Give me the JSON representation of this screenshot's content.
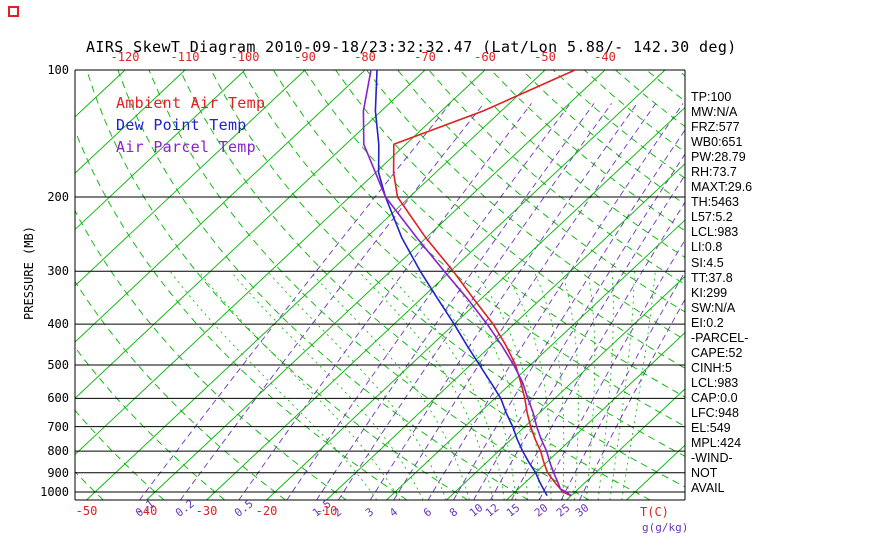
{
  "title": "AIRS SkewT Diagram 2010-09-18/23:32:32.47 (Lat/Lon 5.88/- 142.30 deg)",
  "colors": {
    "isotherm_green": "#00b400",
    "temp_red": "#dd2222",
    "dew_blue": "#2222cc",
    "parcel_purple": "#8822cc",
    "mixing_violet": "#6a35b8",
    "axis_black": "#000000"
  },
  "y_axis": {
    "label": "PRESSURE (MB)",
    "ticks": [
      100,
      200,
      300,
      400,
      500,
      600,
      700,
      800,
      900,
      1000
    ]
  },
  "top_axis": {
    "ticks": [
      -120,
      -110,
      -100,
      -90,
      -80,
      -70,
      -60,
      -50,
      -40
    ]
  },
  "bottom_axis": {
    "temp_ticks": [
      -50,
      -40,
      -30,
      -20,
      -10
    ],
    "temp_label": "T(C)",
    "mix_ticks": [
      0.1,
      0.2,
      0.5,
      1.5,
      2,
      3,
      4,
      6,
      8,
      10,
      12,
      15,
      20,
      25,
      30
    ],
    "mix_label": "g(g/kg)"
  },
  "legend": {
    "items": [
      {
        "label": "Ambient Air Temp",
        "color": "#dd2222"
      },
      {
        "label": "Dew Point Temp",
        "color": "#2222cc"
      },
      {
        "label": "Air Parcel Temp",
        "color": "#8822cc"
      }
    ]
  },
  "stats": {
    "lines": [
      "TP:100",
      "MW:N/A",
      "FRZ:577",
      "WB0:651",
      "PW:28.79",
      "RH:73.7",
      "MAXT:29.6",
      "TH:5463",
      "L57:5.2",
      "LCL:983",
      "LI:0.8",
      "SI:4.5",
      "TT:37.8",
      "KI:299",
      "SW:N/A",
      "EI:0.2",
      "-PARCEL-",
      "CAPE:52",
      "CINH:5",
      "LCL:983",
      "CAP:0.0",
      "LFC:948",
      "EL:549",
      "MPL:424",
      "-WIND-",
      "NOT",
      "AVAIL"
    ]
  },
  "chart_data": {
    "type": "line",
    "title": "AIRS SkewT Diagram 2010-09-18/23:32:32.47 (Lat/Lon 5.88/- 142.30 deg)",
    "x_axis": {
      "label": "T(C)",
      "unit": "degC",
      "top_ticks": [
        -120,
        -110,
        -100,
        -90,
        -80,
        -70,
        -60,
        -50,
        -40
      ],
      "bottom_ticks": [
        -50,
        -40,
        -30,
        -20,
        -10
      ]
    },
    "y_axis": {
      "label": "PRESSURE (MB)",
      "unit": "hPa",
      "scale": "log",
      "range": [
        100,
        1045
      ],
      "ticks": [
        100,
        200,
        300,
        400,
        500,
        600,
        700,
        800,
        900,
        1000
      ]
    },
    "projection": "skew-t log-p, isotherms skewed ~45deg",
    "series": [
      {
        "name": "Ambient Air Temp",
        "color": "#dd2222",
        "points_p_t": [
          [
            1020,
            30
          ],
          [
            1000,
            28
          ],
          [
            950,
            25
          ],
          [
            900,
            22
          ],
          [
            850,
            19.5
          ],
          [
            800,
            17
          ],
          [
            750,
            14
          ],
          [
            700,
            11
          ],
          [
            650,
            8
          ],
          [
            600,
            5
          ],
          [
            550,
            1.5
          ],
          [
            500,
            -2.5
          ],
          [
            450,
            -7.5
          ],
          [
            400,
            -13.5
          ],
          [
            350,
            -21
          ],
          [
            300,
            -29.5
          ],
          [
            250,
            -40
          ],
          [
            200,
            -52
          ],
          [
            175,
            -57
          ],
          [
            150,
            -62
          ],
          [
            125,
            -53
          ],
          [
            100,
            -45
          ]
        ]
      },
      {
        "name": "Dew Point Temp",
        "color": "#2222cc",
        "points_p_t": [
          [
            1020,
            26
          ],
          [
            1000,
            25
          ],
          [
            950,
            22.5
          ],
          [
            900,
            20
          ],
          [
            850,
            17
          ],
          [
            800,
            14
          ],
          [
            750,
            11
          ],
          [
            700,
            8
          ],
          [
            650,
            4.5
          ],
          [
            600,
            1
          ],
          [
            550,
            -3.5
          ],
          [
            500,
            -8.5
          ],
          [
            450,
            -14
          ],
          [
            400,
            -20
          ],
          [
            350,
            -27
          ],
          [
            300,
            -35
          ],
          [
            250,
            -44
          ],
          [
            200,
            -54
          ],
          [
            175,
            -59.5
          ],
          [
            150,
            -64.5
          ],
          [
            125,
            -71
          ],
          [
            100,
            -78
          ]
        ]
      },
      {
        "name": "Air Parcel Temp",
        "color": "#8822cc",
        "points_p_t": [
          [
            1020,
            30
          ],
          [
            1000,
            28.5
          ],
          [
            983,
            27
          ],
          [
            950,
            25.5
          ],
          [
            900,
            23
          ],
          [
            850,
            20.5
          ],
          [
            800,
            18
          ],
          [
            750,
            15
          ],
          [
            700,
            12
          ],
          [
            650,
            9
          ],
          [
            600,
            5.5
          ],
          [
            550,
            1.8
          ],
          [
            500,
            -2.8
          ],
          [
            450,
            -8.2
          ],
          [
            400,
            -14.5
          ],
          [
            350,
            -22
          ],
          [
            300,
            -31
          ],
          [
            250,
            -41.5
          ],
          [
            200,
            -54
          ],
          [
            150,
            -67
          ],
          [
            125,
            -73
          ],
          [
            100,
            -79
          ]
        ]
      }
    ],
    "reference_lines": {
      "isotherms_c": {
        "from": -130,
        "to": 50,
        "step": 10,
        "style": "solid",
        "color": "#00b400"
      },
      "dry_adiabats_theta_c": {
        "from": -50,
        "to": 210,
        "step": 10,
        "style": "dashed",
        "color": "#00b400"
      },
      "moist_adiabats_thetaw_c": [
        -4,
        0,
        4,
        8,
        12,
        16,
        18,
        20,
        22,
        24,
        26,
        28,
        30,
        32,
        34,
        36,
        38
      ],
      "mixing_ratio_g_kg": [
        0.1,
        0.2,
        0.5,
        1,
        1.5,
        2,
        3,
        4,
        6,
        8,
        10,
        12,
        15,
        20,
        25,
        30
      ]
    },
    "legend_position": "upper-left inside plot",
    "grid": true
  }
}
